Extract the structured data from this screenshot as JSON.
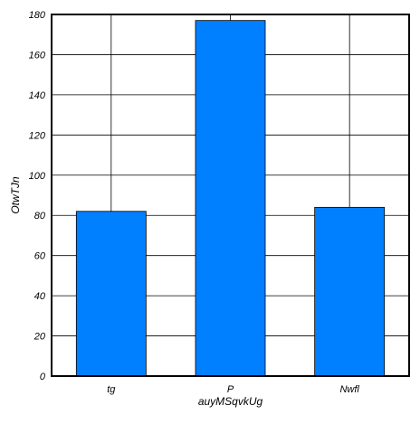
{
  "chart_data": {
    "type": "bar",
    "categories": [
      "tg",
      "P",
      "Nwfl"
    ],
    "values": [
      82,
      177,
      84
    ],
    "xlabel": "auyMSqvkUg",
    "ylabel": "OtwTJn",
    "ylim": [
      0,
      180
    ],
    "yticks": [
      0,
      20,
      40,
      60,
      80,
      100,
      120,
      140,
      160,
      180
    ],
    "grid": true,
    "bar_color": "#007fff",
    "edge_color": "#000000",
    "grid_color": "#000000",
    "legend": "none"
  }
}
